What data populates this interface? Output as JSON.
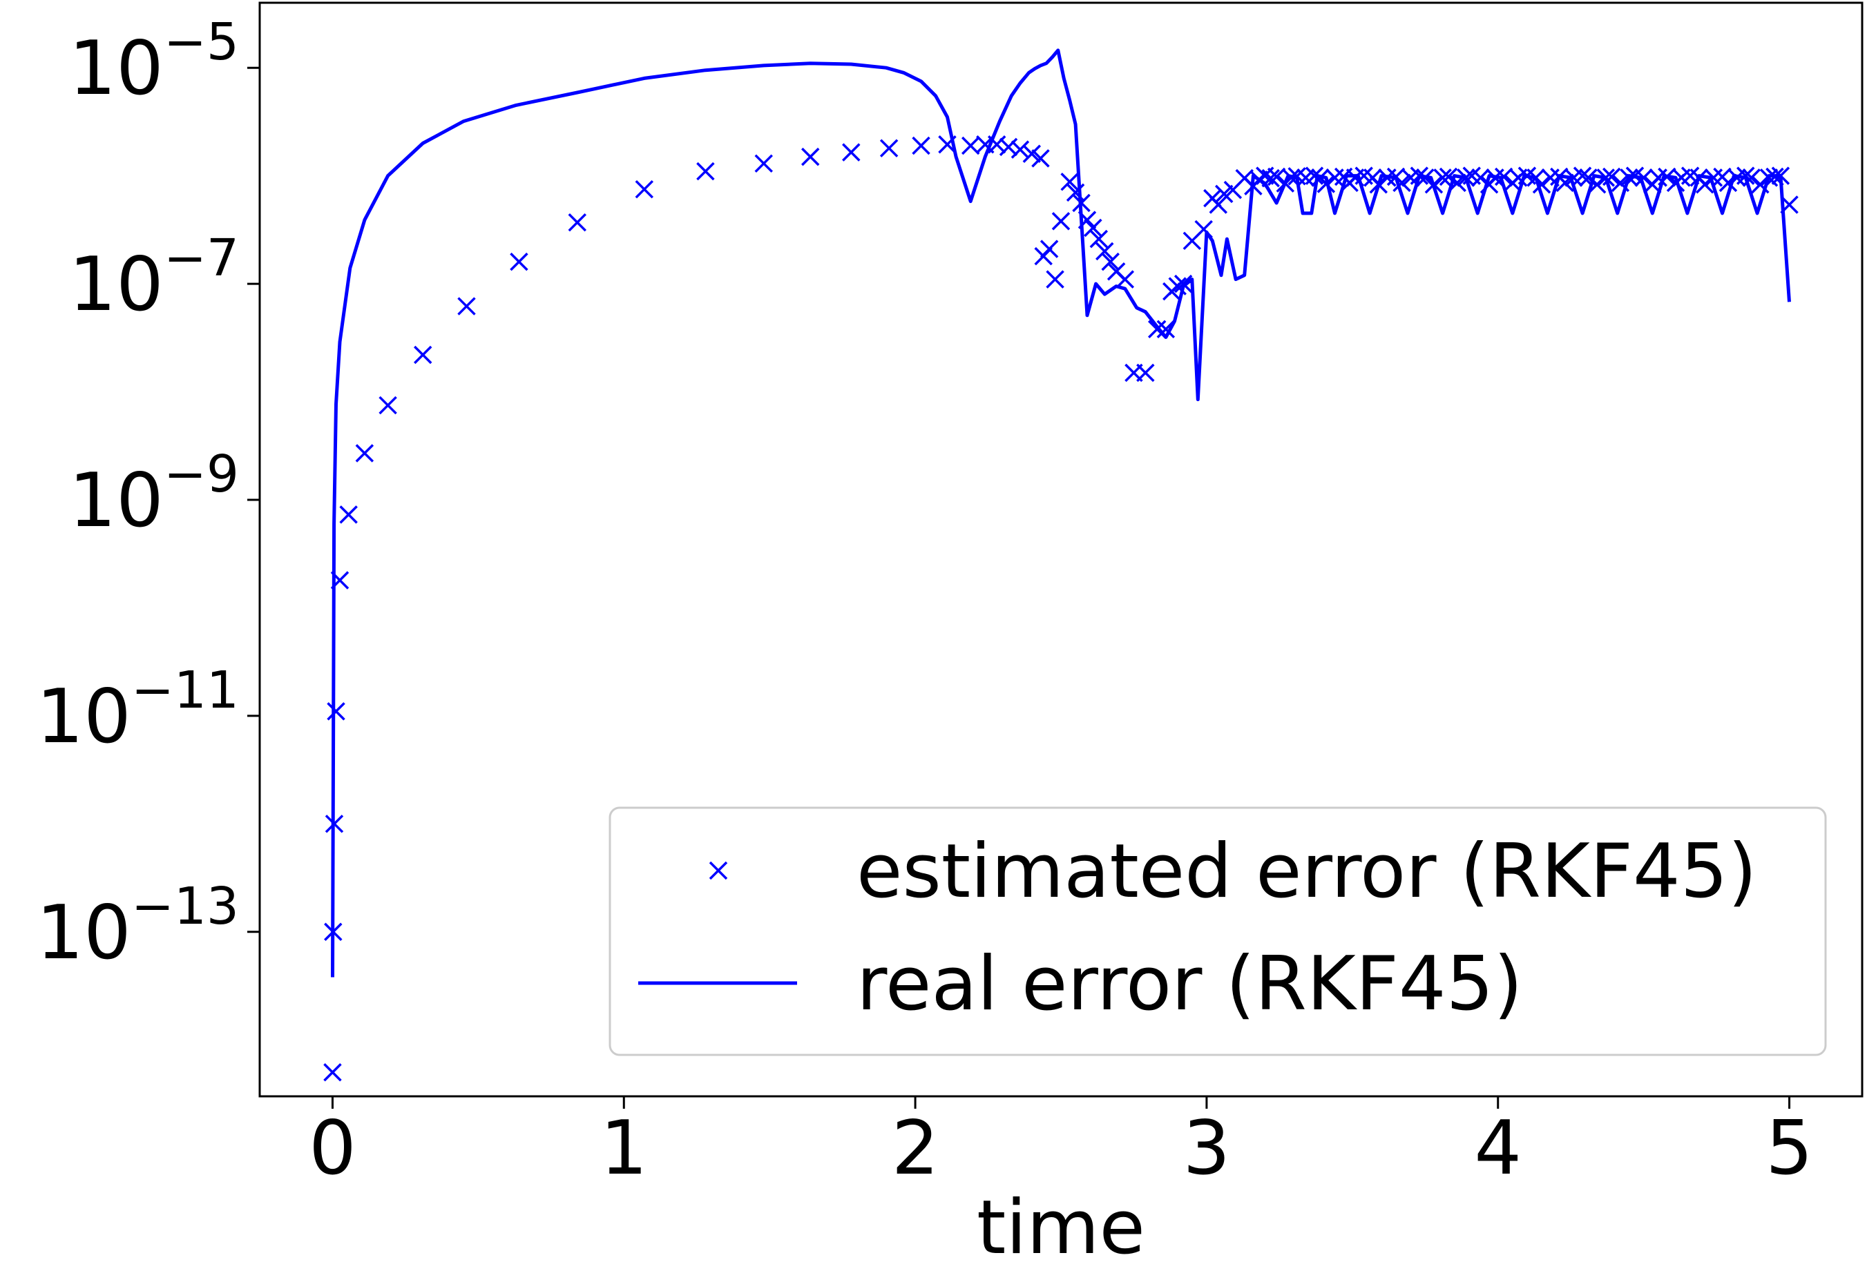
{
  "chart_data": {
    "type": "line",
    "title": "",
    "xlabel": "time",
    "ylabel": "",
    "xlim": [
      -0.25,
      5.25
    ],
    "ylim": [
      3e-15,
      4e-05
    ],
    "yscale": "log",
    "grid": false,
    "legend_position": "lower-right",
    "x_ticks": [
      {
        "value": 0,
        "label": "0"
      },
      {
        "value": 1,
        "label": "1"
      },
      {
        "value": 2,
        "label": "2"
      },
      {
        "value": 3,
        "label": "3"
      },
      {
        "value": 4,
        "label": "4"
      },
      {
        "value": 5,
        "label": "5"
      }
    ],
    "y_ticks": [
      {
        "value": 1e-13,
        "base": "10",
        "exp": "−13"
      },
      {
        "value": 1e-11,
        "base": "10",
        "exp": "−11"
      },
      {
        "value": 1e-09,
        "base": "10",
        "exp": "−9"
      },
      {
        "value": 1e-07,
        "base": "10",
        "exp": "−7"
      },
      {
        "value": 1e-05,
        "base": "10",
        "exp": "−5"
      }
    ],
    "series": [
      {
        "name": "estimated error (RKF45)",
        "style": "marker-x",
        "color": "#0000ff",
        "x": [
          0.0,
          0.002,
          0.006,
          0.012,
          0.025,
          0.055,
          0.11,
          0.19,
          0.31,
          0.46,
          0.64,
          0.84,
          1.07,
          1.28,
          1.48,
          1.64,
          1.78,
          1.91,
          2.02,
          2.11,
          2.19,
          2.24,
          2.28,
          2.32,
          2.36,
          2.4,
          2.43,
          2.44,
          2.46,
          2.48,
          2.5,
          2.53,
          2.55,
          2.57,
          2.59,
          2.61,
          2.63,
          2.65,
          2.67,
          2.69,
          2.72,
          2.75,
          2.79,
          2.83,
          2.86,
          2.88,
          2.9,
          2.92,
          2.95,
          2.99,
          3.02,
          3.04,
          3.06,
          3.09,
          3.13,
          3.16,
          3.18,
          3.2,
          3.22,
          3.24,
          3.27,
          3.29,
          3.31,
          3.34,
          3.37,
          3.39,
          3.41,
          3.44,
          3.47,
          3.49,
          3.51,
          3.54,
          3.57,
          3.59,
          3.62,
          3.65,
          3.67,
          3.7,
          3.73,
          3.75,
          3.78,
          3.81,
          3.83,
          3.86,
          3.89,
          3.91,
          3.94,
          3.97,
          3.99,
          4.02,
          4.05,
          4.07,
          4.1,
          4.13,
          4.15,
          4.18,
          4.21,
          4.23,
          4.26,
          4.29,
          4.31,
          4.34,
          4.37,
          4.39,
          4.42,
          4.45,
          4.47,
          4.5,
          4.53,
          4.55,
          4.58,
          4.61,
          4.63,
          4.66,
          4.69,
          4.71,
          4.74,
          4.77,
          4.79,
          4.82,
          4.85,
          4.87,
          4.9,
          4.93,
          4.95,
          4.97,
          5.0
        ],
        "y": [
          5e-15,
          1e-13,
          1e-12,
          1.1e-11,
          1.8e-10,
          7.3e-10,
          2.7e-09,
          7.5e-09,
          2.2e-08,
          6.2e-08,
          1.6e-07,
          3.7e-07,
          7.5e-07,
          1.1e-06,
          1.3e-06,
          1.5e-06,
          1.65e-06,
          1.8e-06,
          1.9e-06,
          1.95e-06,
          1.9e-06,
          1.95e-06,
          1.95e-06,
          1.85e-06,
          1.75e-06,
          1.6e-06,
          1.45e-06,
          1.8e-07,
          2.1e-07,
          1.1e-07,
          3.8e-07,
          8.8e-07,
          7e-07,
          5.6e-07,
          3.9e-07,
          3.3e-07,
          2.6e-07,
          2e-07,
          1.6e-07,
          1.3e-07,
          1.1e-07,
          1.5e-08,
          1.5e-08,
          3.8e-08,
          3.8e-08,
          8.5e-08,
          9.5e-08,
          1e-07,
          2.5e-07,
          3.2e-07,
          6.2e-07,
          5.4e-07,
          6.8e-07,
          7.4e-07,
          9.5e-07,
          8e-07,
          9.2e-07,
          1e-06,
          9.5e-07,
          9.8e-07,
          8.5e-07,
          9.6e-07,
          9.9e-07,
          9.6e-07,
          1e-06,
          9.6e-07,
          8.4e-07,
          9.6e-07,
          9.8e-07,
          8.6e-07,
          9.6e-07,
          1e-06,
          9.6e-07,
          8.3e-07,
          9.6e-07,
          9.8e-07,
          8.6e-07,
          9.6e-07,
          1e-06,
          9.6e-07,
          8.3e-07,
          9.6e-07,
          9.8e-07,
          8.6e-07,
          9.6e-07,
          1e-06,
          9.6e-07,
          8.3e-07,
          9.6e-07,
          9.8e-07,
          8.6e-07,
          9.6e-07,
          1e-06,
          9.6e-07,
          8.3e-07,
          9.6e-07,
          9.8e-07,
          8.6e-07,
          9.6e-07,
          1e-06,
          9.6e-07,
          8.3e-07,
          9.6e-07,
          9.8e-07,
          8.6e-07,
          9.6e-07,
          1e-06,
          9.6e-07,
          8.3e-07,
          9.6e-07,
          9.8e-07,
          8.6e-07,
          9.6e-07,
          1e-06,
          9.6e-07,
          8.3e-07,
          9.6e-07,
          9.8e-07,
          8.6e-07,
          9.6e-07,
          1e-06,
          9.6e-07,
          8.3e-07,
          9.6e-07,
          9.8e-07,
          1e-06,
          5.4e-07
        ]
      },
      {
        "name": "real error (RKF45)",
        "style": "line",
        "color": "#0000ff",
        "x": [
          0.0,
          0.005,
          0.012,
          0.025,
          0.06,
          0.11,
          0.19,
          0.31,
          0.45,
          0.63,
          0.84,
          1.07,
          1.28,
          1.48,
          1.64,
          1.78,
          1.9,
          1.96,
          2.02,
          2.07,
          2.11,
          2.14,
          2.19,
          2.24,
          2.29,
          2.33,
          2.36,
          2.39,
          2.41,
          2.43,
          2.45,
          2.47,
          2.49,
          2.51,
          2.53,
          2.55,
          2.59,
          2.62,
          2.65,
          2.69,
          2.72,
          2.76,
          2.79,
          2.83,
          2.86,
          2.89,
          2.92,
          2.95,
          2.97,
          3.0,
          3.02,
          3.05,
          3.07,
          3.1,
          3.13,
          3.16,
          3.2,
          3.24,
          3.28,
          3.31,
          3.33,
          3.36,
          3.38,
          3.41,
          3.44,
          3.48,
          3.52,
          3.56,
          3.6,
          3.65,
          3.69,
          3.73,
          3.77,
          3.81,
          3.85,
          3.89,
          3.93,
          3.97,
          4.01,
          4.05,
          4.09,
          4.13,
          4.17,
          4.21,
          4.25,
          4.29,
          4.33,
          4.37,
          4.41,
          4.45,
          4.49,
          4.53,
          4.57,
          4.61,
          4.65,
          4.69,
          4.73,
          4.77,
          4.81,
          4.85,
          4.89,
          4.93,
          4.97,
          5.0
        ],
        "y": [
          3.8e-14,
          6e-10,
          7.7e-09,
          2.9e-08,
          1.4e-07,
          3.9e-07,
          1e-06,
          2e-06,
          3.2e-06,
          4.5e-06,
          5.9e-06,
          8e-06,
          9.5e-06,
          1.05e-05,
          1.1e-05,
          1.08e-05,
          1e-05,
          9e-06,
          7.5e-06,
          5.5e-06,
          3.5e-06,
          1.5e-06,
          5.8e-07,
          1.5e-06,
          3.2e-06,
          5.5e-06,
          7.2e-06,
          9e-06,
          9.8e-06,
          1.05e-05,
          1.1e-05,
          1.25e-05,
          1.45e-05,
          8e-06,
          5e-06,
          3e-06,
          5.1e-08,
          1e-07,
          8e-08,
          9.5e-08,
          9e-08,
          6e-08,
          5.5e-08,
          4e-08,
          3.2e-08,
          4.5e-08,
          9.5e-08,
          1.1e-07,
          8.5e-09,
          3e-07,
          2.5e-07,
          1.2e-07,
          2.6e-07,
          1.1e-07,
          1.2e-07,
          1e-06,
          8.5e-07,
          5.6e-07,
          1e-06,
          9.6e-07,
          4.5e-07,
          4.5e-07,
          1e-06,
          9.6e-07,
          4.5e-07,
          1e-06,
          1e-06,
          4.5e-07,
          1e-06,
          9.6e-07,
          4.5e-07,
          1e-06,
          9.6e-07,
          4.5e-07,
          1e-06,
          9.6e-07,
          4.5e-07,
          1e-06,
          9.6e-07,
          4.5e-07,
          1e-06,
          9.6e-07,
          4.5e-07,
          1e-06,
          9.6e-07,
          4.5e-07,
          1e-06,
          9.6e-07,
          4.5e-07,
          1e-06,
          9.6e-07,
          4.5e-07,
          1e-06,
          9.6e-07,
          4.5e-07,
          1e-06,
          9.6e-07,
          4.5e-07,
          1e-06,
          9.6e-07,
          4.5e-07,
          1e-06,
          1e-06,
          6.8e-08
        ]
      }
    ]
  }
}
